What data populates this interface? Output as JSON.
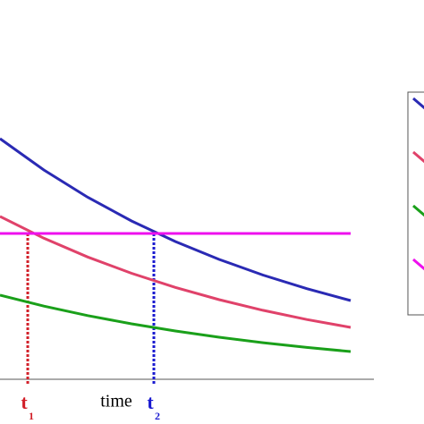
{
  "chart_data": {
    "type": "line",
    "x_label": "time",
    "x": [
      0,
      49,
      98,
      147,
      196,
      245,
      294,
      343,
      392
    ],
    "xlim": [
      0,
      418
    ],
    "ylim": [
      0,
      300
    ],
    "series": [
      {
        "color": "#2a2ab4",
        "values": [
          269,
          234,
          203.5,
          177,
          154,
          134,
          116.5,
          101.3,
          88
        ]
      },
      {
        "color": "#e0426a",
        "values": [
          182,
          157.7,
          136.7,
          118.5,
          102.7,
          89,
          77.1,
          66.8,
          58
        ]
      },
      {
        "color": "#1aa01a",
        "values": [
          94,
          81.8,
          71.2,
          62,
          54,
          47,
          40.9,
          35.6,
          31
        ]
      },
      {
        "color": "#ee10ee",
        "values": [
          163,
          163,
          163,
          163,
          163,
          163,
          163,
          163,
          163
        ]
      }
    ],
    "markers": [
      {
        "label": "t",
        "subscript": "1",
        "x": 31,
        "y": 163,
        "color": "#d2202a"
      },
      {
        "label": "t",
        "subscript": "2",
        "x": 172,
        "y": 163,
        "color": "#1a1ad0"
      }
    ]
  }
}
